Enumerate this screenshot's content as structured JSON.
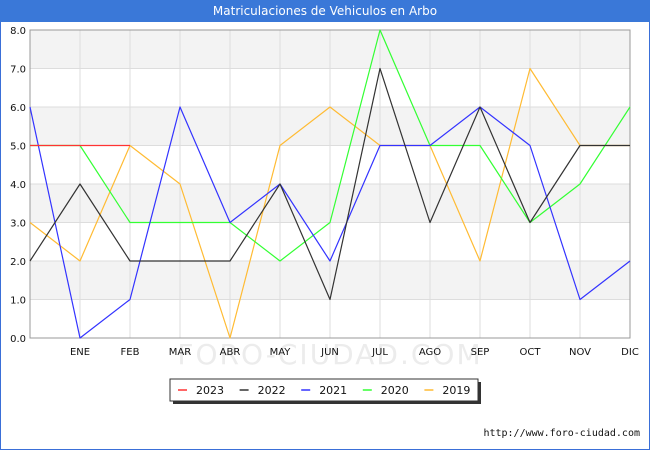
{
  "title": "Matriculaciones de Vehiculos en Arbo",
  "watermark": "FORO-CIUDAD.COM",
  "credit": "http://www.foro-ciudad.com",
  "chart_data": {
    "type": "line",
    "title": "Matriculaciones de Vehiculos en Arbo",
    "x": [
      "",
      "ENE",
      "FEB",
      "MAR",
      "ABR",
      "MAY",
      "JUN",
      "JUL",
      "AGO",
      "SEP",
      "OCT",
      "NOV",
      "DIC"
    ],
    "ylim": [
      0,
      8
    ],
    "yticks": [
      "0.0",
      "1.0",
      "2.0",
      "3.0",
      "4.0",
      "5.0",
      "6.0",
      "7.0",
      "8.0"
    ],
    "grid": true,
    "legend_position": "bottom-center",
    "series": [
      {
        "name": "2023",
        "color": "#ff3333",
        "values": [
          5,
          5,
          5,
          null,
          null,
          null,
          null,
          null,
          null,
          null,
          null,
          null,
          null
        ]
      },
      {
        "name": "2022",
        "color": "#333333",
        "values": [
          2,
          4,
          2,
          2,
          2,
          4,
          1,
          7,
          3,
          6,
          3,
          5,
          5
        ]
      },
      {
        "name": "2021",
        "color": "#3333ff",
        "values": [
          6,
          0,
          1,
          6,
          3,
          4,
          2,
          5,
          5,
          6,
          5,
          1,
          2
        ]
      },
      {
        "name": "2020",
        "color": "#33ff33",
        "values": [
          5,
          5,
          3,
          3,
          3,
          2,
          3,
          8,
          5,
          5,
          3,
          4,
          6
        ]
      },
      {
        "name": "2019",
        "color": "#ffbb33",
        "values": [
          3,
          2,
          5,
          4,
          0,
          5,
          6,
          5,
          5,
          2,
          7,
          5,
          5
        ]
      }
    ]
  }
}
